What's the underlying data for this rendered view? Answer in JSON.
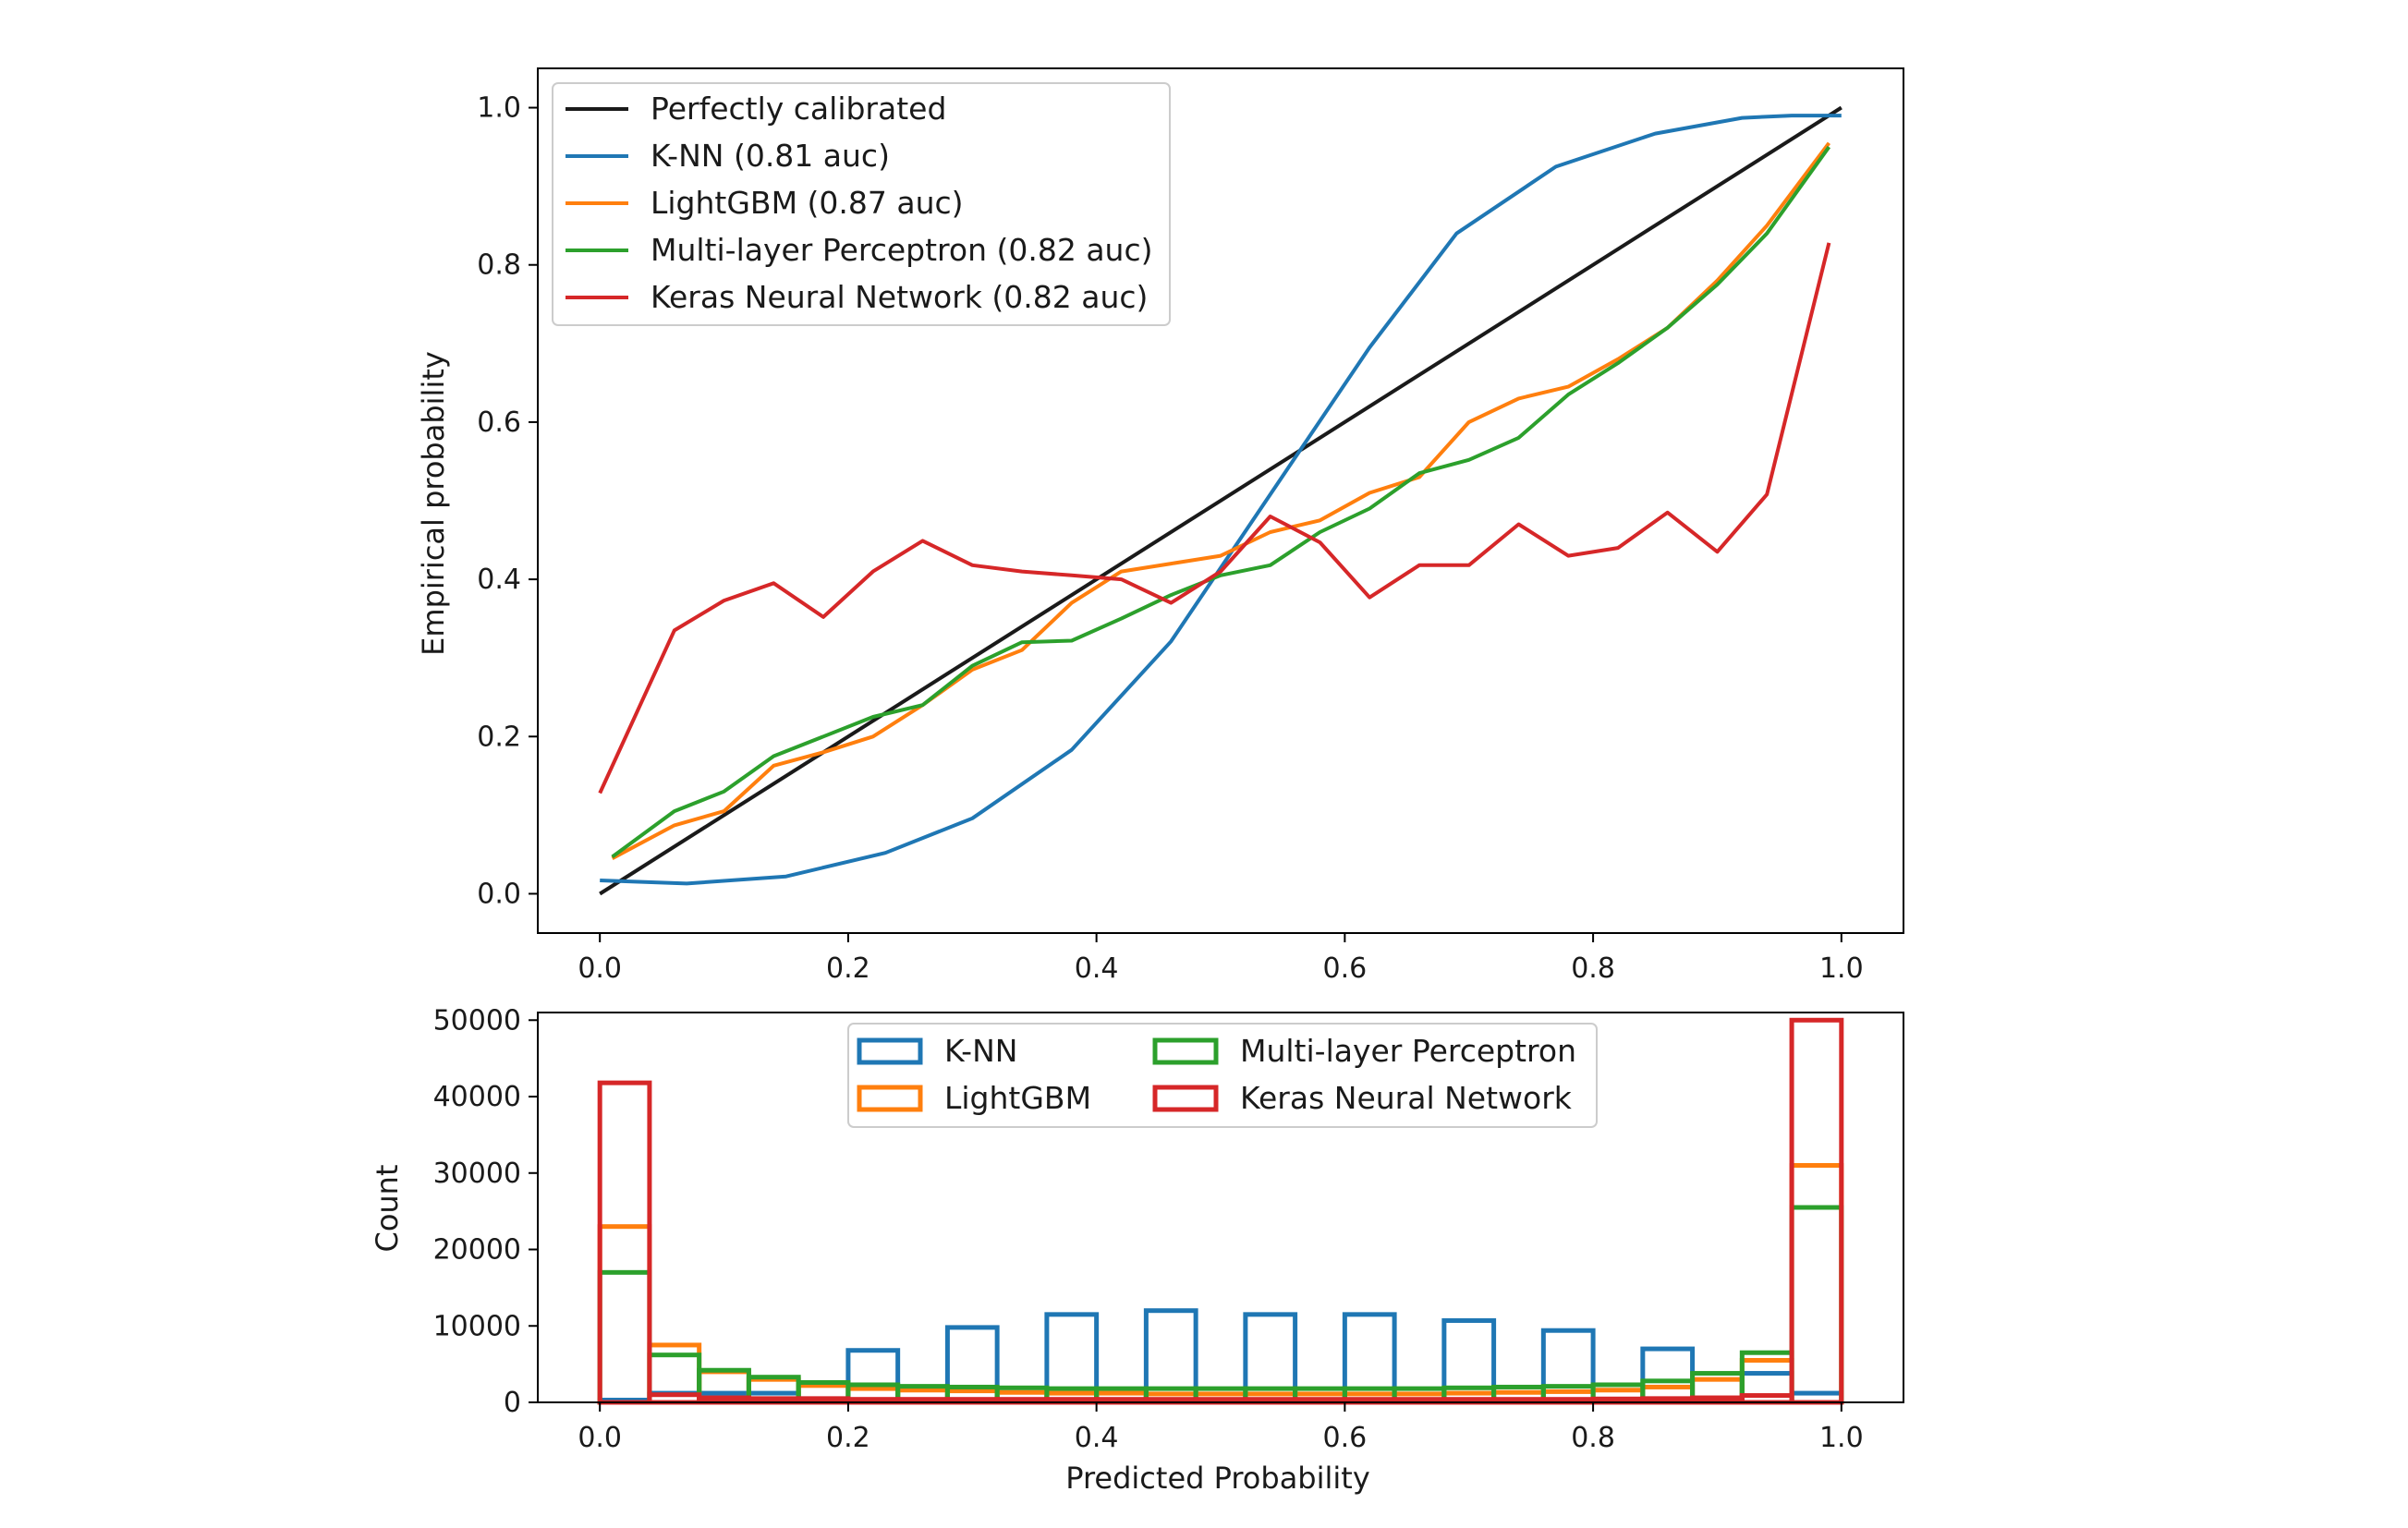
{
  "colors": {
    "perfect": "#1a1a1a",
    "knn": "#1f77b4",
    "lightgbm": "#ff7f0e",
    "mlp": "#2ca02c",
    "keras": "#d62728"
  },
  "chart_data": [
    {
      "type": "line",
      "xlim": [
        -0.05,
        1.05
      ],
      "ylim": [
        -0.05,
        1.05
      ],
      "xticks": [
        "0.0",
        "0.2",
        "0.4",
        "0.6",
        "0.8",
        "1.0"
      ],
      "yticks": [
        "0.0",
        "0.2",
        "0.4",
        "0.6",
        "0.8",
        "1.0"
      ],
      "xlabel": "",
      "ylabel": "Empirical probability",
      "legend_position": "top-left",
      "grid": false,
      "series": [
        {
          "key": "perfect",
          "name": "Perfectly calibrated",
          "x": [
            0.0,
            1.0
          ],
          "y": [
            0.0,
            1.0
          ]
        },
        {
          "key": "knn",
          "name": "K-NN (0.81 auc)",
          "x": [
            0.0,
            0.07,
            0.15,
            0.23,
            0.3,
            0.38,
            0.46,
            0.54,
            0.62,
            0.69,
            0.77,
            0.85,
            0.92,
            0.96,
            1.0
          ],
          "y": [
            0.017,
            0.013,
            0.022,
            0.052,
            0.096,
            0.183,
            0.321,
            0.508,
            0.695,
            0.84,
            0.925,
            0.967,
            0.987,
            0.99,
            0.99
          ]
        },
        {
          "key": "lightgbm",
          "name": "LightGBM (0.87 auc)",
          "x": [
            0.01,
            0.06,
            0.1,
            0.14,
            0.18,
            0.22,
            0.26,
            0.3,
            0.34,
            0.38,
            0.42,
            0.46,
            0.5,
            0.54,
            0.58,
            0.62,
            0.66,
            0.7,
            0.74,
            0.78,
            0.82,
            0.86,
            0.9,
            0.94,
            0.99
          ],
          "y": [
            0.045,
            0.087,
            0.105,
            0.163,
            0.18,
            0.2,
            0.24,
            0.285,
            0.31,
            0.37,
            0.41,
            0.42,
            0.43,
            0.46,
            0.475,
            0.51,
            0.53,
            0.6,
            0.63,
            0.645,
            0.68,
            0.72,
            0.78,
            0.85,
            0.955
          ]
        },
        {
          "key": "mlp",
          "name": "Multi-layer Perceptron (0.82 auc)",
          "x": [
            0.01,
            0.06,
            0.1,
            0.14,
            0.18,
            0.22,
            0.26,
            0.3,
            0.34,
            0.38,
            0.42,
            0.46,
            0.5,
            0.54,
            0.58,
            0.62,
            0.66,
            0.7,
            0.74,
            0.78,
            0.82,
            0.86,
            0.9,
            0.94,
            0.99
          ],
          "y": [
            0.047,
            0.105,
            0.13,
            0.175,
            0.2,
            0.225,
            0.24,
            0.29,
            0.32,
            0.322,
            0.35,
            0.38,
            0.405,
            0.418,
            0.46,
            0.49,
            0.535,
            0.552,
            0.58,
            0.635,
            0.675,
            0.72,
            0.775,
            0.84,
            0.95
          ]
        },
        {
          "key": "keras",
          "name": "Keras Neural Network (0.82 auc)",
          "x": [
            0.0,
            0.06,
            0.1,
            0.14,
            0.18,
            0.22,
            0.26,
            0.3,
            0.34,
            0.38,
            0.42,
            0.46,
            0.5,
            0.54,
            0.58,
            0.62,
            0.66,
            0.7,
            0.74,
            0.78,
            0.82,
            0.86,
            0.9,
            0.94,
            0.99
          ],
          "y": [
            0.128,
            0.335,
            0.373,
            0.395,
            0.352,
            0.41,
            0.449,
            0.418,
            0.41,
            0.405,
            0.4,
            0.37,
            0.41,
            0.48,
            0.447,
            0.377,
            0.418,
            0.418,
            0.47,
            0.43,
            0.44,
            0.485,
            0.435,
            0.508,
            0.828
          ]
        }
      ]
    },
    {
      "type": "histogram",
      "bin_width": 0.04,
      "xlim": [
        -0.05,
        1.05
      ],
      "ylim": [
        0,
        51000
      ],
      "xticks": [
        "0.0",
        "0.2",
        "0.4",
        "0.6",
        "0.8",
        "1.0"
      ],
      "yticks": [
        "0",
        "10000",
        "20000",
        "30000",
        "40000",
        "50000"
      ],
      "xlabel": "Predicted Probability",
      "ylabel": "Count",
      "legend_position": "top-center",
      "legend_columns": 2,
      "series": [
        {
          "key": "knn",
          "name": "K-NN",
          "bins": [
            0.0,
            0.04,
            0.2,
            0.28,
            0.36,
            0.44,
            0.52,
            0.6,
            0.68,
            0.76,
            0.84,
            0.92,
            0.96
          ],
          "widths": [
            0.04,
            0.12,
            0.04,
            0.04,
            0.04,
            0.04,
            0.04,
            0.04,
            0.04,
            0.04,
            0.04,
            0.04,
            0.04
          ],
          "counts": [
            300,
            1200,
            6800,
            9800,
            11500,
            12000,
            11500,
            11500,
            10700,
            9400,
            7000,
            3800,
            1200
          ]
        },
        {
          "key": "lightgbm",
          "name": "LightGBM",
          "bins": [
            0.0,
            0.04,
            0.08,
            0.12,
            0.16,
            0.2,
            0.24,
            0.28,
            0.32,
            0.36,
            0.4,
            0.44,
            0.48,
            0.52,
            0.56,
            0.6,
            0.64,
            0.68,
            0.72,
            0.76,
            0.8,
            0.84,
            0.88,
            0.92,
            0.96
          ],
          "counts": [
            23000,
            7500,
            4000,
            3000,
            2200,
            1800,
            1600,
            1500,
            1300,
            1200,
            1200,
            1100,
            1100,
            1100,
            1100,
            1100,
            1100,
            1200,
            1300,
            1400,
            1600,
            2000,
            3000,
            5500,
            31000
          ]
        },
        {
          "key": "mlp",
          "name": "Multi-layer Perceptron",
          "bins": [
            0.0,
            0.04,
            0.08,
            0.12,
            0.16,
            0.2,
            0.24,
            0.28,
            0.32,
            0.36,
            0.4,
            0.44,
            0.48,
            0.52,
            0.56,
            0.6,
            0.64,
            0.68,
            0.72,
            0.76,
            0.8,
            0.84,
            0.88,
            0.92,
            0.96
          ],
          "counts": [
            17000,
            6200,
            4200,
            3300,
            2600,
            2300,
            2100,
            2000,
            1900,
            1800,
            1800,
            1800,
            1800,
            1800,
            1800,
            1800,
            1800,
            1900,
            2000,
            2100,
            2300,
            2800,
            3800,
            6500,
            25500
          ]
        },
        {
          "key": "keras",
          "name": "Keras Neural Network",
          "bins": [
            0.0,
            0.04,
            0.08,
            0.12,
            0.16,
            0.2,
            0.24,
            0.28,
            0.32,
            0.36,
            0.4,
            0.44,
            0.48,
            0.52,
            0.56,
            0.6,
            0.64,
            0.68,
            0.72,
            0.76,
            0.8,
            0.84,
            0.88,
            0.92,
            0.96
          ],
          "counts": [
            41800,
            1000,
            600,
            500,
            500,
            400,
            400,
            400,
            400,
            400,
            400,
            400,
            400,
            400,
            400,
            400,
            400,
            400,
            400,
            400,
            450,
            500,
            600,
            900,
            50000
          ]
        }
      ]
    }
  ]
}
